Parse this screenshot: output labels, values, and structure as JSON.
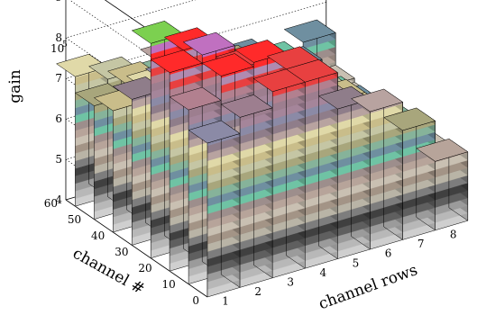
{
  "chart_data": {
    "type": "lego3d",
    "title": "",
    "xlabel": "channel rows",
    "ylabel": "channel #",
    "zlabel": "gain",
    "z_exponent_label": "10",
    "z_exponent_power": "5",
    "x_ticks": [
      "1",
      "2",
      "3",
      "4",
      "5",
      "6",
      "7",
      "8"
    ],
    "y_ticks": [
      "0",
      "10",
      "20",
      "30",
      "40",
      "50",
      "60"
    ],
    "z_ticks": [
      "4",
      "5",
      "6",
      "7",
      "8",
      "9"
    ],
    "zlim": [
      4,
      9.6
    ],
    "grid": true,
    "rows": [
      1,
      2,
      3,
      4,
      5,
      6,
      7,
      8
    ],
    "channel_bins": [
      56,
      48,
      40,
      32,
      24,
      16,
      8,
      0
    ],
    "values": [
      [
        7.2,
        6.9,
        6.6,
        6.4,
        6.2,
        6.4,
        6.1,
        6.4
      ],
      [
        6.8,
        7.1,
        7.4,
        7.0,
        6.8,
        6.6,
        6.3,
        5.6
      ],
      [
        7.0,
        7.3,
        7.4,
        7.0,
        6.6,
        6.3,
        5.9,
        5.5
      ],
      [
        7.6,
        7.8,
        7.6,
        7.4,
        7.0,
        6.6,
        6.2,
        5.5
      ],
      [
        9.3,
        8.9,
        8.0,
        7.6,
        7.5,
        6.9,
        6.3,
        5.6
      ],
      [
        8.9,
        9.1,
        8.5,
        7.9,
        7.3,
        7.0,
        6.3,
        5.6
      ],
      [
        8.3,
        8.9,
        9.0,
        8.6,
        7.5,
        7.0,
        6.5,
        5.6
      ],
      [
        7.8,
        8.2,
        8.6,
        8.6,
        7.7,
        7.4,
        6.7,
        5.7
      ]
    ],
    "palette": [
      "#cfcfcf",
      "#b8b8b8",
      "#9b9b9b",
      "#5f5f5f",
      "#404040",
      "#7d7d7d",
      "#b9b4a6",
      "#a39486",
      "#c9c0b2",
      "#b7a49a",
      "#9d8e8c",
      "#6fc3a4",
      "#6f8fa0",
      "#86b39a",
      "#a8a67c",
      "#c5c6a4",
      "#c9bd8a",
      "#e0d9a8",
      "#b8a3a0",
      "#8f7d8a",
      "#8b8aa6",
      "#a5859a",
      "#9d7e8f",
      "#b2808f",
      "#e84040",
      "#b08ab0",
      "#ff2a2a",
      "#c070c0",
      "#7cd050",
      "#000000"
    ],
    "palette_zmin": 4,
    "palette_zmax": 9.6
  }
}
